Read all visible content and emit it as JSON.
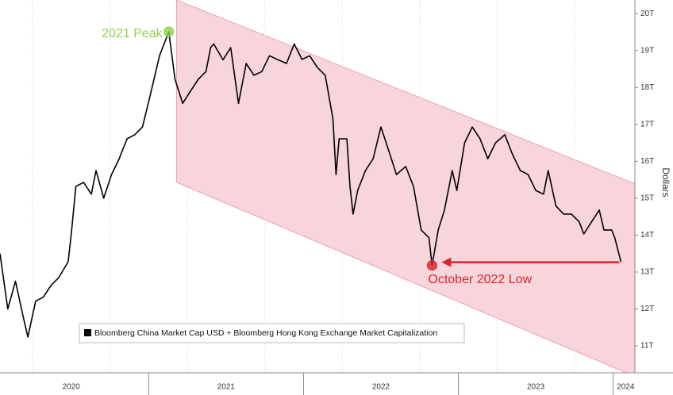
{
  "chart_data": {
    "type": "line",
    "y_label": "Dollars",
    "legend_label": "Bloomberg China Market Cap USD + Bloomberg Hong Kong Exchange Market Capitalization",
    "color": "#000000",
    "grid": true,
    "xlim": [
      2020.04,
      2024.14
    ],
    "ylim": [
      10.27,
      20.37
    ],
    "yticks": [
      {
        "value": 11,
        "label": "11T"
      },
      {
        "value": 12,
        "label": "12T"
      },
      {
        "value": 13,
        "label": "13T"
      },
      {
        "value": 14,
        "label": "14T"
      },
      {
        "value": 15,
        "label": "15T"
      },
      {
        "value": 16,
        "label": "16T"
      },
      {
        "value": 17,
        "label": "17T"
      },
      {
        "value": 18,
        "label": "18T"
      },
      {
        "value": 19,
        "label": "19T"
      },
      {
        "value": 20,
        "label": "20T"
      }
    ],
    "xticks": [
      {
        "value": 2020.5,
        "label": "2020"
      },
      {
        "value": 2021.5,
        "label": "2021"
      },
      {
        "value": 2022.5,
        "label": "2022"
      },
      {
        "value": 2023.5,
        "label": "2023"
      },
      {
        "value": 2024.08,
        "label": "2024"
      }
    ],
    "x_boundaries": [
      2021,
      2022,
      2023,
      2024
    ],
    "xgrid": [
      2020.25,
      2020.75,
      2021.25,
      2021.75,
      2022.25,
      2022.75,
      2023.25,
      2023.75
    ],
    "x": [
      2020.04,
      2020.09,
      2020.14,
      2020.19,
      2020.22,
      2020.27,
      2020.32,
      2020.37,
      2020.42,
      2020.48,
      2020.5,
      2020.53,
      2020.58,
      2020.63,
      2020.66,
      2020.71,
      2020.76,
      2020.81,
      2020.86,
      2020.91,
      2020.96,
      2021.01,
      2021.07,
      2021.12,
      2021.13,
      2021.17,
      2021.22,
      2021.27,
      2021.32,
      2021.37,
      2021.4,
      2021.42,
      2021.48,
      2021.53,
      2021.58,
      2021.63,
      2021.68,
      2021.73,
      2021.78,
      2021.83,
      2021.89,
      2021.94,
      2021.99,
      2022.04,
      2022.09,
      2022.14,
      2022.19,
      2022.21,
      2022.23,
      2022.28,
      2022.3,
      2022.32,
      2022.35,
      2022.4,
      2022.45,
      2022.5,
      2022.55,
      2022.6,
      2022.66,
      2022.71,
      2022.76,
      2022.81,
      2022.83,
      2022.87,
      2022.91,
      2022.96,
      2022.99,
      2023.04,
      2023.09,
      2023.14,
      2023.19,
      2023.24,
      2023.3,
      2023.35,
      2023.4,
      2023.45,
      2023.5,
      2023.55,
      2023.58,
      2023.63,
      2023.68,
      2023.73,
      2023.78,
      2023.81,
      2023.86,
      2023.91,
      2023.94,
      2023.99,
      2024.01,
      2024.05
    ],
    "values": [
      13.5,
      12.0,
      12.75,
      11.78,
      11.24,
      12.21,
      12.32,
      12.64,
      12.85,
      13.28,
      14.03,
      15.32,
      15.43,
      15.11,
      15.75,
      15.0,
      15.64,
      16.07,
      16.61,
      16.72,
      16.93,
      17.79,
      18.86,
      19.4,
      19.51,
      18.22,
      17.57,
      17.9,
      18.22,
      18.43,
      19.08,
      19.18,
      18.75,
      19.08,
      17.57,
      18.65,
      18.33,
      18.43,
      18.86,
      18.76,
      18.65,
      19.18,
      18.76,
      18.86,
      18.54,
      18.33,
      17.15,
      15.64,
      16.61,
      16.61,
      15.32,
      14.57,
      15.21,
      15.75,
      16.07,
      16.93,
      16.29,
      15.64,
      15.86,
      15.32,
      14.14,
      13.93,
      13.18,
      14.14,
      14.68,
      15.75,
      15.21,
      16.5,
      16.93,
      16.61,
      16.07,
      16.5,
      16.72,
      16.18,
      15.75,
      15.64,
      15.21,
      15.11,
      15.75,
      14.79,
      14.57,
      14.57,
      14.36,
      14.03,
      14.36,
      14.68,
      14.14,
      14.14,
      13.93,
      13.28
    ],
    "channel": {
      "x": [
        2021.18,
        2024.14
      ],
      "upper": [
        20.37,
        15.39
      ],
      "lower": [
        15.43,
        10.17
      ],
      "color": "#f4c7cf"
    },
    "annotations": [
      {
        "text": "2021 Peak",
        "x": 2021.13,
        "y": 19.51,
        "color": "#8fd14f"
      },
      {
        "text": "October 2022 Low",
        "x": 2022.83,
        "y": 13.18,
        "color": "#d7262b",
        "arrow_from": 2024.04
      }
    ]
  }
}
